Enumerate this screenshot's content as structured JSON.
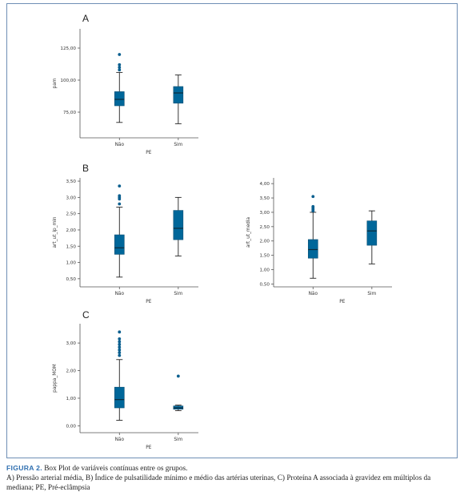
{
  "caption": {
    "label": "FIGURA 2.",
    "title": "Box Plot de variáveis contínuas entre os grupos.",
    "text": "A) Pressão arterial média, B) Índice de pulsatilidade mínimo e médio das artérias uterinas, C) Proteína A associada à gravidez em múltiplos da mediana; PE, Pré-eclâmpsia"
  },
  "colors": {
    "box": "#00679a",
    "outlier": "#0a5f8f",
    "axis": "#555555"
  },
  "chart_data": [
    {
      "panel": "A",
      "type": "box",
      "xlabel": "PE",
      "ylabel": "pam",
      "categories": [
        "Não",
        "Sim"
      ],
      "ylim": [
        55,
        140
      ],
      "yticks": [
        75,
        100,
        125
      ],
      "ytick_labels": [
        "75,00",
        "100,00",
        "125,00"
      ],
      "boxes": [
        {
          "category": "Não",
          "min": 67,
          "q1": 80,
          "median": 85,
          "q3": 91,
          "max": 106,
          "outliers": [
            108,
            110,
            112,
            120
          ]
        },
        {
          "category": "Sim",
          "min": 66,
          "q1": 82,
          "median": 90,
          "q3": 95,
          "max": 104,
          "outliers": []
        }
      ]
    },
    {
      "panel": "B",
      "type": "box",
      "xlabel": "PE",
      "ylabel": "art_ut_ip_min",
      "categories": [
        "Não",
        "Sim"
      ],
      "ylim": [
        0.25,
        3.6
      ],
      "yticks": [
        0.5,
        1.0,
        1.5,
        2.0,
        2.5,
        3.0,
        3.5
      ],
      "ytick_labels": [
        "0,50",
        "1,00",
        "1,50",
        "2,00",
        "2,50",
        "3,00",
        "3,50"
      ],
      "boxes": [
        {
          "category": "Não",
          "min": 0.55,
          "q1": 1.25,
          "median": 1.45,
          "q3": 1.85,
          "max": 2.7,
          "outliers": [
            2.8,
            2.95,
            3.0,
            3.05,
            3.35
          ]
        },
        {
          "category": "Sim",
          "min": 1.2,
          "q1": 1.7,
          "median": 2.05,
          "q3": 2.6,
          "max": 3.0,
          "outliers": []
        }
      ]
    },
    {
      "panel": "B2",
      "type": "box",
      "xlabel": "PE",
      "ylabel": "art_ut_media",
      "categories": [
        "Não",
        "Sim"
      ],
      "ylim": [
        0.4,
        4.2
      ],
      "yticks": [
        0.5,
        1.0,
        1.5,
        2.0,
        2.5,
        3.0,
        3.5,
        4.0
      ],
      "ytick_labels": [
        "0,50",
        "1,00",
        "1,50",
        "2,00",
        "2,50",
        "3,00",
        "3,50",
        "4,00"
      ],
      "boxes": [
        {
          "category": "Não",
          "min": 0.7,
          "q1": 1.4,
          "median": 1.7,
          "q3": 2.05,
          "max": 3.0,
          "outliers": [
            3.05,
            3.1,
            3.15,
            3.2,
            3.55
          ]
        },
        {
          "category": "Sim",
          "min": 1.2,
          "q1": 1.85,
          "median": 2.35,
          "q3": 2.7,
          "max": 3.05,
          "outliers": []
        }
      ]
    },
    {
      "panel": "C",
      "type": "box",
      "xlabel": "PE",
      "ylabel": "pappa_MOM",
      "categories": [
        "Não",
        "Sim"
      ],
      "ylim": [
        -0.25,
        3.7
      ],
      "yticks": [
        0,
        1,
        2,
        3
      ],
      "ytick_labels": [
        "0,00",
        "1,00",
        "2,00",
        "3,00"
      ],
      "boxes": [
        {
          "category": "Não",
          "min": 0.2,
          "q1": 0.65,
          "median": 0.95,
          "q3": 1.4,
          "max": 2.4,
          "outliers": [
            2.55,
            2.65,
            2.75,
            2.85,
            2.95,
            3.05,
            3.15,
            3.4
          ]
        },
        {
          "category": "Sim",
          "min": 0.55,
          "q1": 0.6,
          "median": 0.65,
          "q3": 0.72,
          "max": 0.75,
          "outliers": [
            1.8
          ]
        }
      ]
    }
  ]
}
